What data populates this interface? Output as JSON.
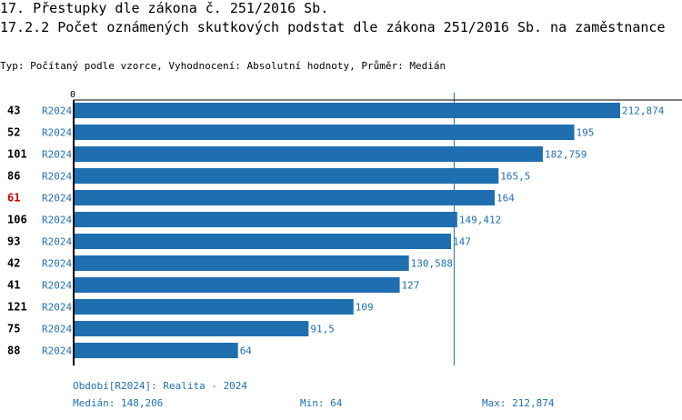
{
  "header": {
    "title": "17. Přestupky dle zákona č. 251/2016 Sb.",
    "subtitle": "17.2.2 Počet oznámených skutkových podstat dle zákona 251/2016 Sb. na zaměstnance",
    "meta": "Typ: Počítaný podle vzorce, Vyhodnocení: Absolutní hodnoty, Průměr: Medián"
  },
  "colors": {
    "bar": "#1f6fb0",
    "label": "#1f6fb0",
    "highlight_id": "#cc0000",
    "axis": "#000000",
    "median_line": "#1f6fb0"
  },
  "chart_data": {
    "type": "bar",
    "orientation": "horizontal",
    "xlim": [
      0,
      212.874
    ],
    "x_tick_label": "0",
    "median": 148.206,
    "highlight": "61",
    "rows": [
      {
        "id": "43",
        "period": "R2024",
        "value": 212.874,
        "label": "212,874"
      },
      {
        "id": "52",
        "period": "R2024",
        "value": 195,
        "label": "195"
      },
      {
        "id": "101",
        "period": "R2024",
        "value": 182.759,
        "label": "182,759"
      },
      {
        "id": "86",
        "period": "R2024",
        "value": 165.5,
        "label": "165,5"
      },
      {
        "id": "61",
        "period": "R2024",
        "value": 164,
        "label": "164"
      },
      {
        "id": "106",
        "period": "R2024",
        "value": 149.412,
        "label": "149,412"
      },
      {
        "id": "93",
        "period": "R2024",
        "value": 147,
        "label": "147"
      },
      {
        "id": "42",
        "period": "R2024",
        "value": 130.588,
        "label": "130,588"
      },
      {
        "id": "41",
        "period": "R2024",
        "value": 127,
        "label": "127"
      },
      {
        "id": "121",
        "period": "R2024",
        "value": 109,
        "label": "109"
      },
      {
        "id": "75",
        "period": "R2024",
        "value": 91.5,
        "label": "91,5"
      },
      {
        "id": "88",
        "period": "R2024",
        "value": 64,
        "label": "64"
      }
    ]
  },
  "footer": {
    "period_note": "Období[R2024]: Realita - 2024",
    "median_text": "Medián: 148,206",
    "min_text": "Min: 64",
    "max_text": "Max: 212,874"
  }
}
